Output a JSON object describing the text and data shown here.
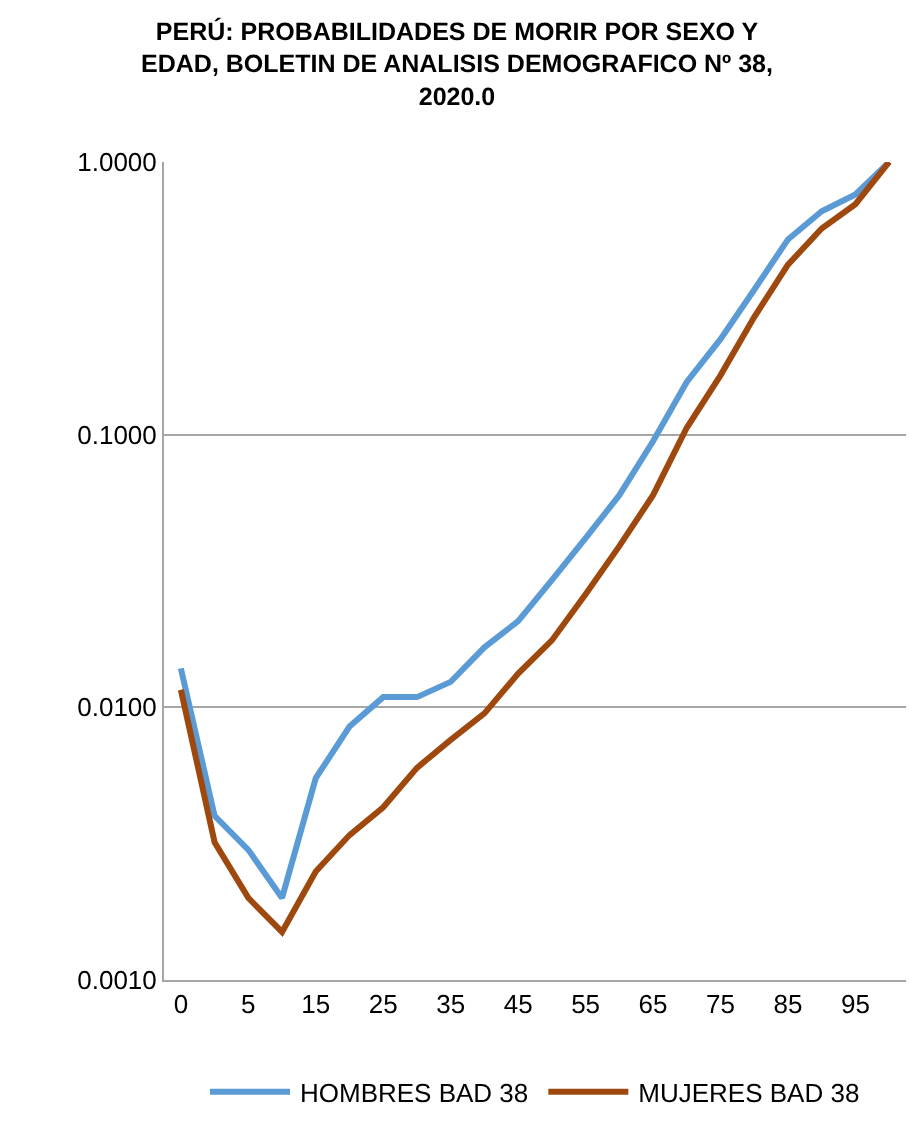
{
  "chart_data": {
    "type": "line",
    "title": "PERÚ: PROBABILIDADES DE MORIR POR SEXO Y\nEDAD, BOLETIN DE ANALISIS DEMOGRAFICO Nº 38,\n2020.0",
    "categories": [
      "0",
      null,
      "5",
      null,
      "15",
      null,
      "25",
      null,
      "35",
      null,
      "45",
      null,
      "55",
      null,
      "65",
      null,
      "75",
      null,
      "85",
      null,
      "95",
      null
    ],
    "series": [
      {
        "name": "HOMBRES BAD 38",
        "color": "#5b9bd5",
        "values": [
          0.0139,
          0.004,
          0.003,
          0.002,
          0.0055,
          0.0085,
          0.0109,
          0.0109,
          0.0124,
          0.0166,
          0.0207,
          0.0293,
          0.0417,
          0.06,
          0.0946,
          0.156,
          0.224,
          0.34,
          0.52,
          0.66,
          0.76,
          1.0
        ]
      },
      {
        "name": "MUJERES BAD 38",
        "color": "#9e480e",
        "values": [
          0.0116,
          0.0032,
          0.002,
          0.0015,
          0.0025,
          0.0034,
          0.0043,
          0.006,
          0.0076,
          0.0095,
          0.0133,
          0.0176,
          0.026,
          0.039,
          0.06,
          0.106,
          0.165,
          0.27,
          0.42,
          0.57,
          0.7,
          1.0
        ]
      }
    ],
    "log": "y",
    "ylim": [
      0.001,
      1
    ],
    "yticks": [
      {
        "value": 0.001,
        "label": "0.0010"
      },
      {
        "value": 0.01,
        "label": "0.0100"
      },
      {
        "value": 0.1,
        "label": "0.1000"
      },
      {
        "value": 1,
        "label": "1.0000"
      }
    ],
    "grid": "y",
    "legend": "bottom",
    "marker": "none",
    "line_style": "solid"
  }
}
